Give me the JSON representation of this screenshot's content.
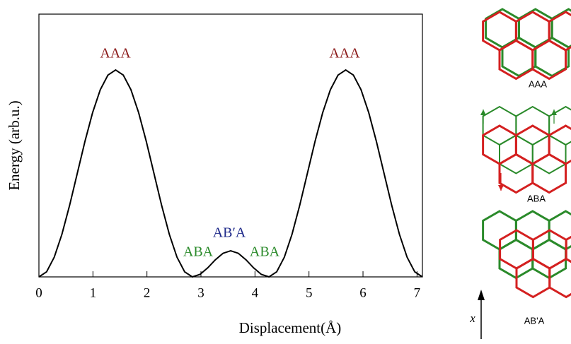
{
  "chart_data": {
    "type": "line",
    "xlabel": "Displacement(Å)",
    "ylabel": "Energy (arb.u.)",
    "xlim": [
      0,
      7.1
    ],
    "ylim": [
      0,
      1.27
    ],
    "xticks": [
      0,
      1,
      2,
      3,
      4,
      5,
      6,
      7
    ],
    "x": [
      0,
      0.142,
      0.284,
      0.426,
      0.568,
      0.71,
      0.852,
      0.994,
      1.136,
      1.278,
      1.42,
      1.562,
      1.704,
      1.846,
      1.988,
      2.13,
      2.272,
      2.414,
      2.556,
      2.698,
      2.84,
      2.982,
      3.124,
      3.266,
      3.408,
      3.55,
      3.692,
      3.834,
      3.976,
      4.118,
      4.26,
      4.402,
      4.544,
      4.686,
      4.828,
      4.97,
      5.112,
      5.254,
      5.396,
      5.538,
      5.68,
      5.822,
      5.964,
      6.106,
      6.248,
      6.39,
      6.532,
      6.674,
      6.816,
      6.958,
      7.1
    ],
    "series": [
      {
        "color": "#000000",
        "values": [
          0,
          0.0245,
          0.0955,
          0.2061,
          0.3455,
          0.5,
          0.6545,
          0.7939,
          0.9045,
          0.9755,
          1,
          0.9755,
          0.9045,
          0.7939,
          0.6545,
          0.5,
          0.3455,
          0.2061,
          0.0955,
          0.0245,
          0,
          0.012,
          0.0435,
          0.0825,
          0.114,
          0.126,
          0.114,
          0.0825,
          0.0435,
          0.012,
          0,
          0.0245,
          0.0955,
          0.2061,
          0.3455,
          0.5,
          0.6545,
          0.7939,
          0.9045,
          0.9755,
          1,
          0.9755,
          0.9045,
          0.7939,
          0.6545,
          0.5,
          0.3455,
          0.2061,
          0.0955,
          0.0245,
          0
        ]
      }
    ],
    "annotations": [
      {
        "text": "AAA",
        "color": "#8b1a1a"
      },
      {
        "text": "AAA",
        "color": "#8b1a1a"
      },
      {
        "text": "AB′A",
        "color": "#1f2a8a"
      },
      {
        "text": "ABA",
        "color": "#2a8a2a"
      },
      {
        "text": "ABA",
        "color": "#2a8a2a"
      }
    ]
  },
  "diagram": {
    "panels": [
      "AAA",
      "ABA",
      "AB'A"
    ],
    "axis_label": "x"
  }
}
